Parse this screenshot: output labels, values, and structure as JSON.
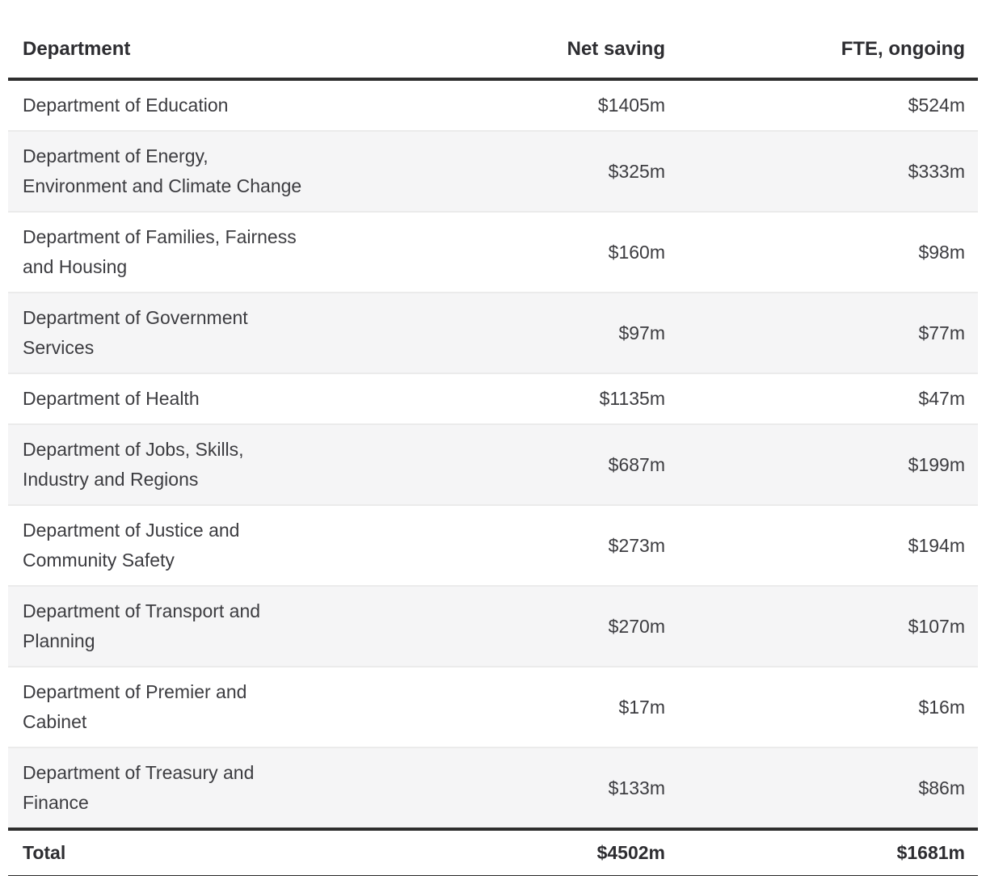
{
  "colors": {
    "background": "#ffffff",
    "text": "#3c3c40",
    "header_text": "#2d2d31",
    "heavy_rule": "#2e2e2e",
    "row_separator": "#ebebeb",
    "row_stripe": "#f5f5f6"
  },
  "chart_data": {
    "type": "table",
    "columns": [
      {
        "label": "Department",
        "align": "left"
      },
      {
        "label": "Net saving",
        "align": "right"
      },
      {
        "label": "FTE, ongoing",
        "align": "right"
      }
    ],
    "rows": [
      {
        "department": "Department of Education",
        "net_saving": "$1405m",
        "fte_ongoing": "$524m"
      },
      {
        "department": "Department of Energy,\nEnvironment and Climate Change",
        "net_saving": "$325m",
        "fte_ongoing": "$333m"
      },
      {
        "department": "Department of Families, Fairness\nand Housing",
        "net_saving": "$160m",
        "fte_ongoing": "$98m"
      },
      {
        "department": "Department of Government\nServices",
        "net_saving": "$97m",
        "fte_ongoing": "$77m"
      },
      {
        "department": "Department of Health",
        "net_saving": "$1135m",
        "fte_ongoing": "$47m"
      },
      {
        "department": "Department of Jobs, Skills,\nIndustry and Regions",
        "net_saving": "$687m",
        "fte_ongoing": "$199m"
      },
      {
        "department": "Department of Justice and\nCommunity Safety",
        "net_saving": "$273m",
        "fte_ongoing": "$194m"
      },
      {
        "department": "Department of Transport and\nPlanning",
        "net_saving": "$270m",
        "fte_ongoing": "$107m"
      },
      {
        "department": "Department of Premier and\nCabinet",
        "net_saving": "$17m",
        "fte_ongoing": "$16m"
      },
      {
        "department": "Department of Treasury and\nFinance",
        "net_saving": "$133m",
        "fte_ongoing": "$86m"
      }
    ],
    "rows_numeric": {
      "net_saving_millions": [
        1405,
        325,
        160,
        97,
        1135,
        687,
        273,
        270,
        17,
        133
      ],
      "fte_ongoing_millions": [
        524,
        333,
        98,
        77,
        47,
        199,
        194,
        107,
        16,
        86
      ]
    },
    "total": {
      "label": "Total",
      "net_saving": "$4502m",
      "fte_ongoing": "$1681m"
    },
    "total_numeric": {
      "net_saving_millions": 4502,
      "fte_ongoing_millions": 1681
    }
  }
}
